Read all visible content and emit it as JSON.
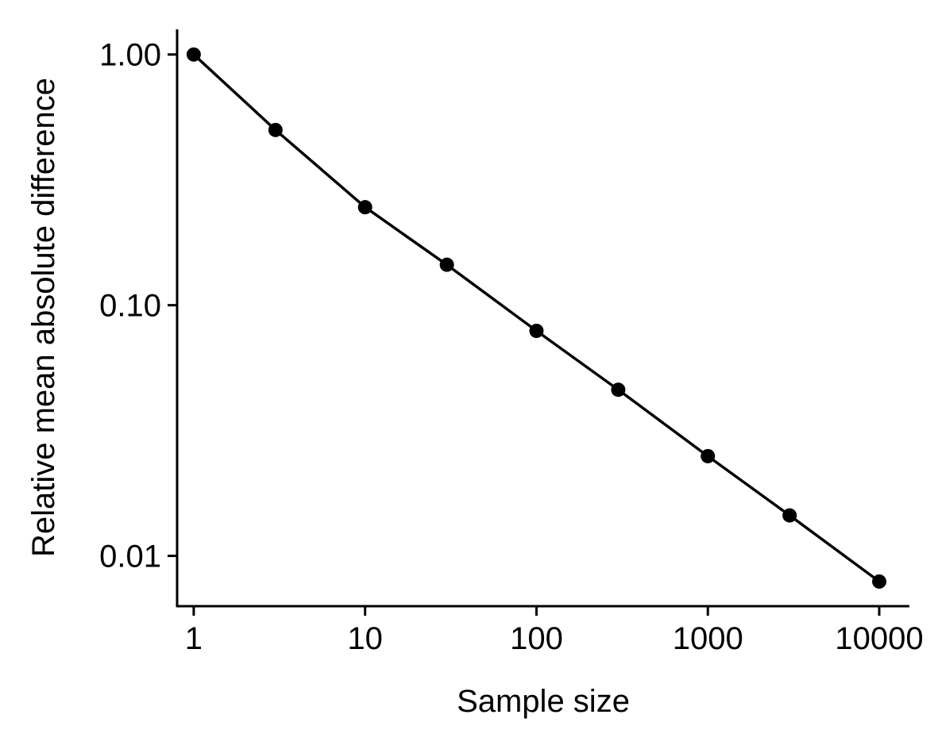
{
  "chart_data": {
    "type": "line",
    "title": "",
    "xlabel": "Sample size",
    "ylabel": "Relative mean absolute difference",
    "x_scale": "log10",
    "y_scale": "log10",
    "xlim": [
      0.8,
      15000
    ],
    "ylim": [
      0.0063,
      1.26
    ],
    "x_ticks": [
      {
        "value": 1,
        "label": "1"
      },
      {
        "value": 10,
        "label": "10"
      },
      {
        "value": 100,
        "label": "100"
      },
      {
        "value": 1000,
        "label": "1000"
      },
      {
        "value": 10000,
        "label": "10000"
      }
    ],
    "y_ticks": [
      {
        "value": 1,
        "label": "1.00"
      },
      {
        "value": 0.1,
        "label": "0.10"
      },
      {
        "value": 0.01,
        "label": "0.01"
      }
    ],
    "grid": false,
    "legend": "none",
    "series": [
      {
        "color": "#000000",
        "x": [
          1,
          3,
          10,
          30,
          100,
          300,
          1000,
          3000,
          10000
        ],
        "y": [
          1.0,
          0.5,
          0.246,
          0.145,
          0.079,
          0.046,
          0.025,
          0.0145,
          0.0079
        ]
      }
    ]
  }
}
